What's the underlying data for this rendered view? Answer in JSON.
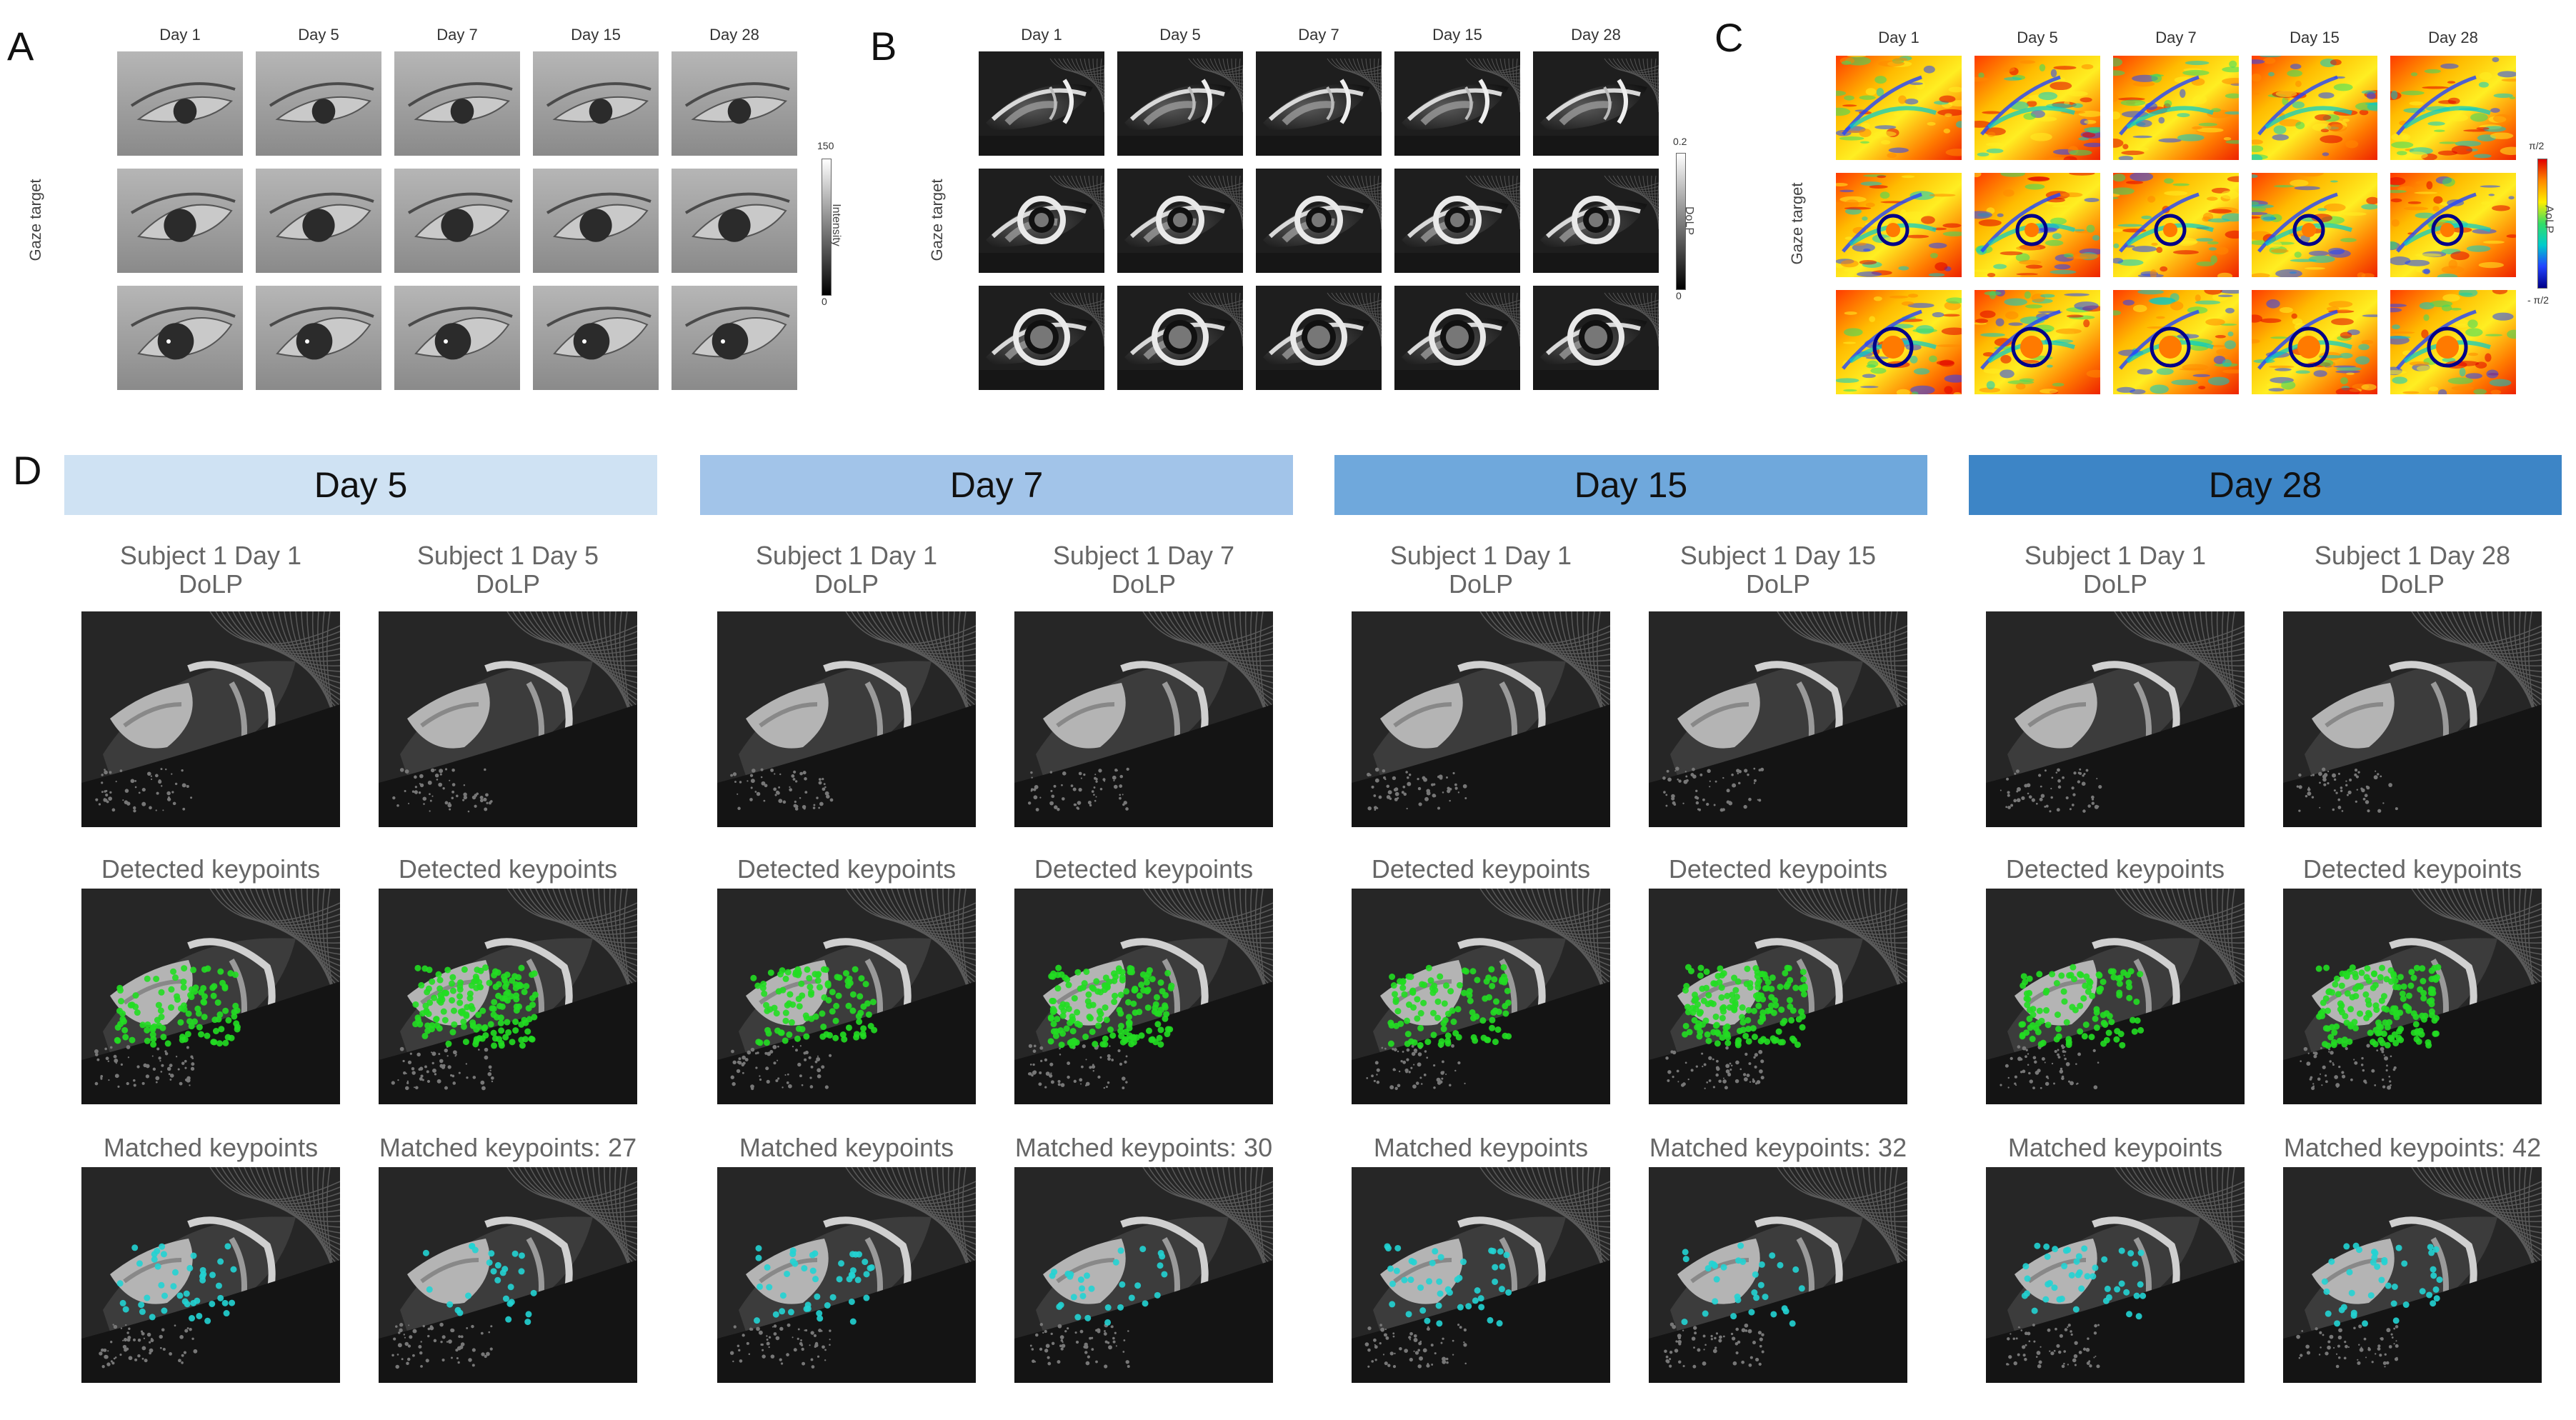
{
  "panels": {
    "a": {
      "label": "A",
      "y_axis_title": "Gaze target",
      "days": [
        "Day 1",
        "Day 5",
        "Day 7",
        "Day 15",
        "Day 28"
      ],
      "colorbar": {
        "title": "Intensity",
        "max": "150",
        "min": "0"
      }
    },
    "b": {
      "label": "B",
      "y_axis_title": "Gaze target",
      "days": [
        "Day 1",
        "Day 5",
        "Day 7",
        "Day 15",
        "Day 28"
      ],
      "colorbar": {
        "title": "DoLP",
        "max": "0.2",
        "min": "0"
      }
    },
    "c": {
      "label": "C",
      "y_axis_title": "Gaze target",
      "days": [
        "Day 1",
        "Day 5",
        "Day 7",
        "Day 15",
        "Day 28"
      ],
      "colorbar": {
        "title": "AoLP",
        "max": "π/2",
        "min": "- π/2"
      }
    },
    "d": {
      "label": "D",
      "groups": [
        {
          "header": "Day 5",
          "color": "#cfe2f3",
          "left_title_line1": "Subject 1 Day 1",
          "left_title_line2": "DoLP",
          "right_title_line1": "Subject 1 Day 5",
          "right_title_line2": "DoLP",
          "detected_left": "Detected keypoints",
          "detected_right": "Detected keypoints",
          "matched_left": "Matched keypoints",
          "matched_right": "Matched keypoints: 27"
        },
        {
          "header": "Day 7",
          "color": "#a2c4e9",
          "left_title_line1": "Subject 1 Day 1",
          "left_title_line2": "DoLP",
          "right_title_line1": "Subject 1 Day 7",
          "right_title_line2": "DoLP",
          "detected_left": "Detected keypoints",
          "detected_right": "Detected keypoints",
          "matched_left": "Matched keypoints",
          "matched_right": "Matched keypoints: 30"
        },
        {
          "header": "Day 15",
          "color": "#6fa8dc",
          "left_title_line1": "Subject 1 Day 1",
          "left_title_line2": "DoLP",
          "right_title_line1": "Subject 1 Day 15",
          "right_title_line2": "DoLP",
          "detected_left": "Detected keypoints",
          "detected_right": "Detected keypoints",
          "matched_left": "Matched keypoints",
          "matched_right": "Matched keypoints: 32"
        },
        {
          "header": "Day 28",
          "color": "#3d85c6",
          "left_title_line1": "Subject 1 Day 1",
          "left_title_line2": "DoLP",
          "right_title_line1": "Subject 1 Day 28",
          "right_title_line2": "DoLP",
          "detected_left": "Detected keypoints",
          "detected_right": "Detected keypoints",
          "matched_left": "Matched keypoints",
          "matched_right": "Matched keypoints: 42"
        }
      ]
    }
  },
  "colors": {
    "keypoint_detected": "#22dd22",
    "keypoint_matched": "#22d3d3"
  }
}
